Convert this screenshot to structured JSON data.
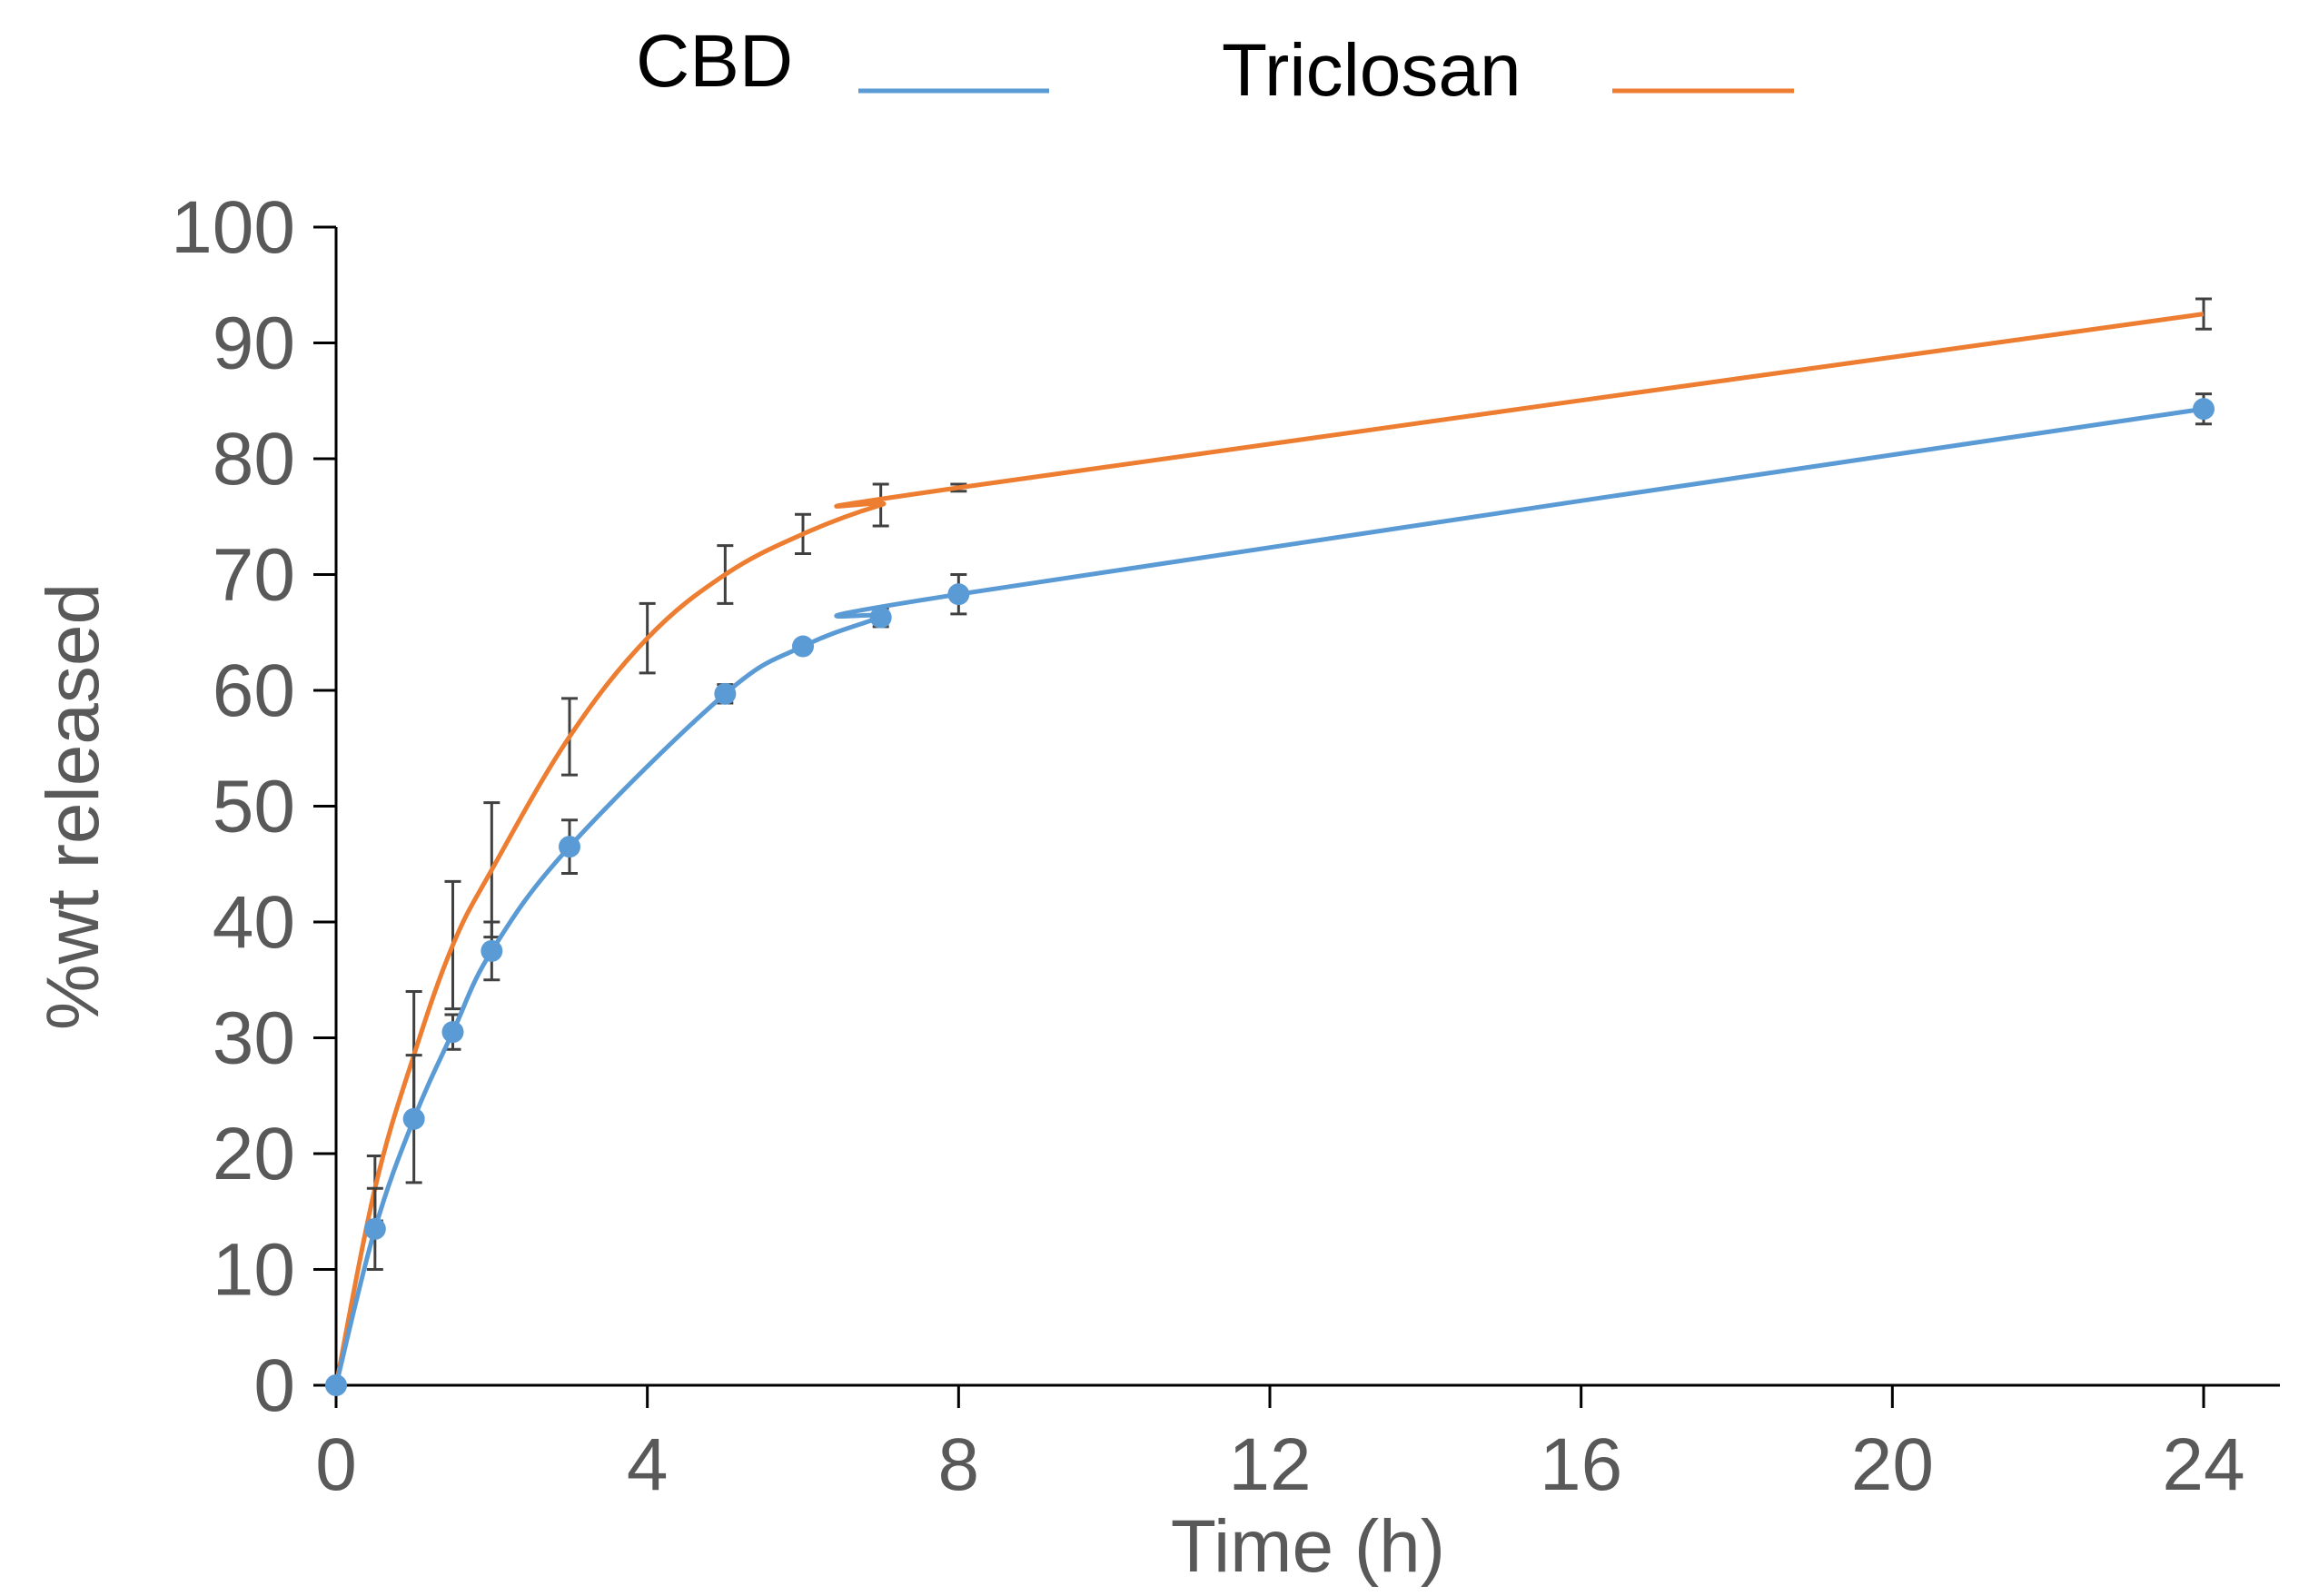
{
  "chart_data": {
    "type": "line",
    "title": "",
    "xlabel": "Time (h)",
    "ylabel": "%wt released",
    "xlim": [
      0,
      24
    ],
    "ylim": [
      0,
      100
    ],
    "x_ticks": [
      0,
      4,
      8,
      12,
      16,
      20,
      24
    ],
    "y_ticks": [
      0,
      10,
      20,
      30,
      40,
      50,
      60,
      70,
      80,
      90,
      100
    ],
    "grid": false,
    "legend_position": "top",
    "series": [
      {
        "name": "CBD",
        "color": "#5B9BD5",
        "markers": true,
        "x": [
          0,
          0.5,
          1,
          1.5,
          2,
          3,
          5,
          6,
          7,
          8,
          24
        ],
        "y": [
          0,
          13.5,
          23,
          30.5,
          37.5,
          46.5,
          59.7,
          63.8,
          66.3,
          68.3,
          84.3
        ],
        "error": [
          0,
          3.5,
          5.5,
          1.5,
          2.5,
          2.3,
          0.8,
          0.5,
          0.8,
          1.7,
          1.3
        ]
      },
      {
        "name": "Triclosan",
        "color": "#ED7D31",
        "markers": false,
        "x": [
          0,
          0.5,
          1,
          1.5,
          2,
          3,
          4,
          5,
          6,
          7,
          8,
          24
        ],
        "y": [
          0,
          17,
          28.5,
          38,
          44.5,
          56,
          64.5,
          70,
          73.5,
          76,
          77.5,
          92.5
        ],
        "error": [
          0,
          2.8,
          5.5,
          5.5,
          5.8,
          3.3,
          3.0,
          2.5,
          1.7,
          1.8,
          0.3,
          1.3
        ]
      }
    ]
  }
}
